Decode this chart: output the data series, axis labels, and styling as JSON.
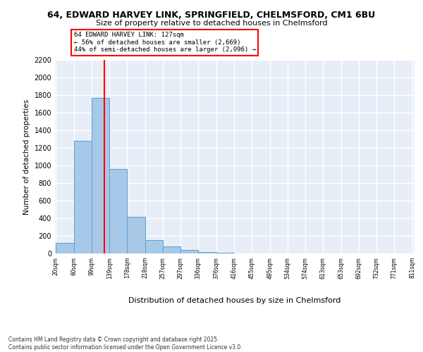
{
  "title1": "64, EDWARD HARVEY LINK, SPRINGFIELD, CHELMSFORD, CM1 6BU",
  "title2": "Size of property relative to detached houses in Chelmsford",
  "xlabel": "Distribution of detached houses by size in Chelmsford",
  "ylabel": "Number of detached properties",
  "bin_edges": [
    20,
    60,
    99,
    139,
    178,
    218,
    257,
    297,
    336,
    376,
    416,
    455,
    495,
    534,
    574,
    613,
    653,
    692,
    732,
    771,
    811
  ],
  "bar_heights": [
    120,
    1280,
    1770,
    960,
    420,
    155,
    80,
    40,
    20,
    5,
    0,
    0,
    0,
    0,
    0,
    0,
    0,
    0,
    0,
    0
  ],
  "bar_color": "#a8c8e8",
  "bar_edge_color": "#5a9fd4",
  "red_line_x": 127,
  "annotation_title": "64 EDWARD HARVEY LINK: 127sqm",
  "annotation_line1": "← 56% of detached houses are smaller (2,669)",
  "annotation_line2": "44% of semi-detached houses are larger (2,096) →",
  "ylim": [
    0,
    2200
  ],
  "yticks": [
    0,
    200,
    400,
    600,
    800,
    1000,
    1200,
    1400,
    1600,
    1800,
    2000,
    2200
  ],
  "background_color": "#e8eef8",
  "grid_color": "#ffffff",
  "footer1": "Contains HM Land Registry data © Crown copyright and database right 2025.",
  "footer2": "Contains public sector information licensed under the Open Government Licence v3.0."
}
